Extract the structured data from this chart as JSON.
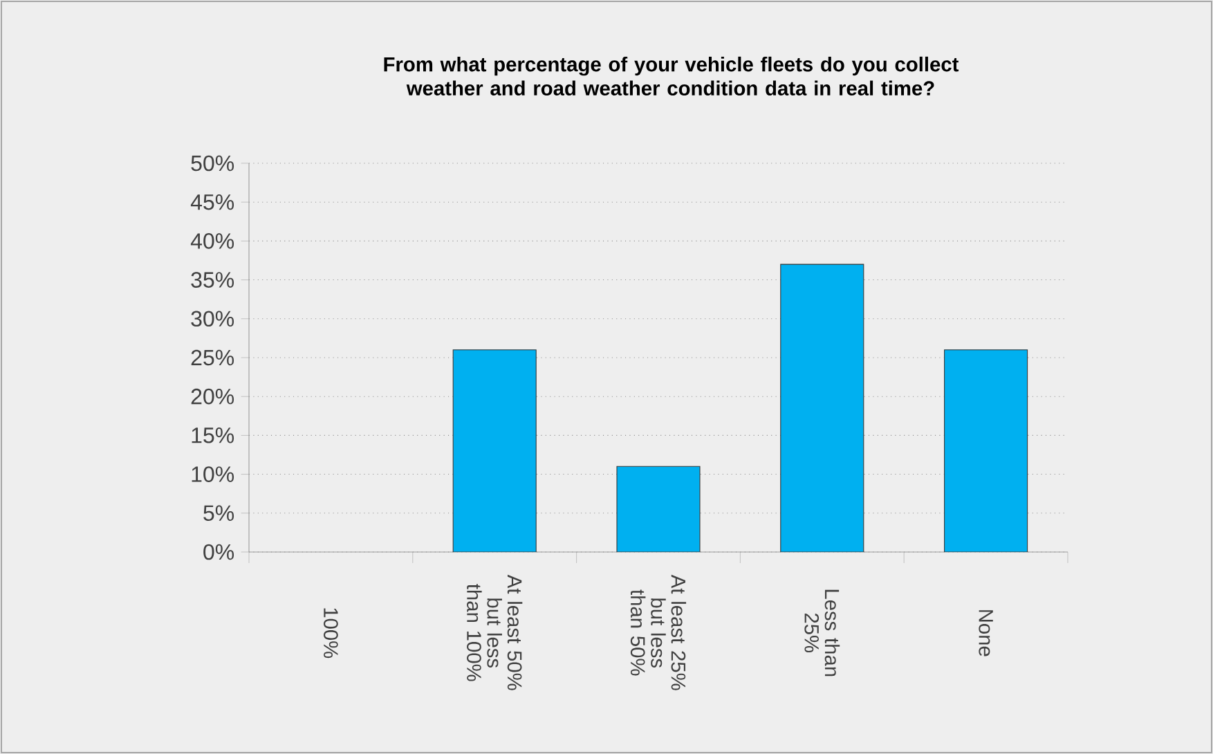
{
  "chart_data": {
    "type": "bar",
    "title": "From what percentage of your vehicle fleets do you collect weather and road weather condition data in real time?",
    "categories": [
      "100%",
      "At least 50% but less than 100%",
      "At least 25% but less than 50%",
      "Less than 25%",
      "None"
    ],
    "values": [
      0,
      26,
      11,
      37,
      26
    ],
    "color": "#00b0f0",
    "ylim": [
      0,
      50
    ],
    "yticks": [
      {
        "value": 0,
        "label": "0%"
      },
      {
        "value": 5,
        "label": "5%"
      },
      {
        "value": 10,
        "label": "10%"
      },
      {
        "value": 15,
        "label": "15%"
      },
      {
        "value": 20,
        "label": "20%"
      },
      {
        "value": 25,
        "label": "25%"
      },
      {
        "value": 30,
        "label": "30%"
      },
      {
        "value": 35,
        "label": "35%"
      },
      {
        "value": 40,
        "label": "40%"
      },
      {
        "value": 45,
        "label": "45%"
      },
      {
        "value": 50,
        "label": "50%"
      }
    ],
    "grid": "y"
  }
}
